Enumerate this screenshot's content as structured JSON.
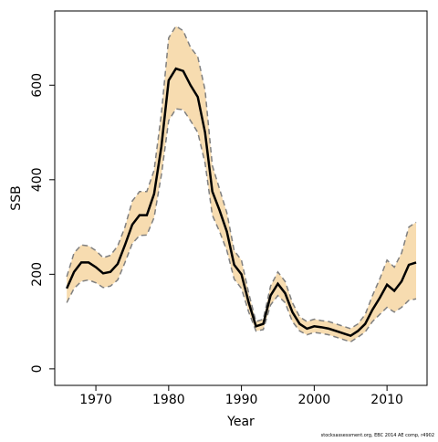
{
  "chart_data": {
    "type": "line",
    "x_label": "Year",
    "y_label": "SSB",
    "footer": "stocksassessment.org, EBC 2014 AE comp, r4902",
    "x": [
      1966,
      1967,
      1968,
      1969,
      1970,
      1971,
      1972,
      1973,
      1974,
      1975,
      1976,
      1977,
      1978,
      1979,
      1980,
      1981,
      1982,
      1983,
      1984,
      1985,
      1986,
      1987,
      1988,
      1989,
      1990,
      1991,
      1992,
      1993,
      1994,
      1995,
      1996,
      1997,
      1998,
      1999,
      2000,
      2001,
      2002,
      2003,
      2004,
      2005,
      2006,
      2007,
      2008,
      2009,
      2010,
      2011,
      2012,
      2013,
      2014
    ],
    "series": [
      {
        "color": "#000000",
        "values": [
          170,
          205,
          225,
          225,
          215,
          202,
          205,
          222,
          262,
          305,
          325,
          325,
          370,
          470,
          610,
          635,
          630,
          600,
          575,
          500,
          375,
          335,
          290,
          220,
          200,
          140,
          90,
          95,
          155,
          180,
          160,
          120,
          95,
          85,
          90,
          88,
          85,
          80,
          75,
          70,
          80,
          95,
          125,
          150,
          178,
          165,
          185,
          220,
          225
        ]
      }
    ],
    "band": {
      "color": "#f7dcb0",
      "edge_color": "#808080",
      "upper": [
        195,
        245,
        262,
        260,
        250,
        235,
        240,
        260,
        300,
        355,
        375,
        375,
        420,
        540,
        700,
        725,
        715,
        680,
        660,
        590,
        430,
        380,
        330,
        250,
        230,
        160,
        100,
        105,
        175,
        205,
        185,
        140,
        110,
        100,
        105,
        102,
        100,
        95,
        90,
        85,
        95,
        115,
        155,
        190,
        230,
        215,
        245,
        300,
        310
      ],
      "lower": [
        140,
        170,
        185,
        188,
        182,
        172,
        175,
        188,
        225,
        265,
        282,
        283,
        320,
        410,
        525,
        550,
        548,
        525,
        500,
        435,
        325,
        290,
        250,
        190,
        170,
        120,
        80,
        83,
        135,
        155,
        140,
        100,
        80,
        72,
        77,
        75,
        72,
        67,
        62,
        57,
        67,
        78,
        100,
        115,
        130,
        120,
        130,
        145,
        148
      ]
    },
    "xlim": [
      1964.35,
      2015.5
    ],
    "ylim": [
      -35,
      757
    ],
    "xticks": [
      1970,
      1980,
      1990,
      2000,
      2010
    ],
    "yticks": [
      0,
      200,
      400,
      600
    ]
  }
}
